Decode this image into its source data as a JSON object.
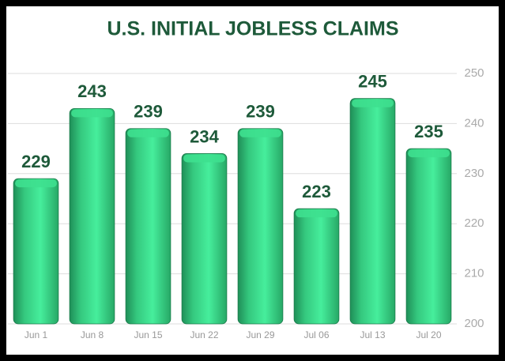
{
  "chart_data": {
    "type": "bar",
    "title": "U.S. INITIAL JOBLESS CLAIMS",
    "categories": [
      "Jun 1",
      "Jun 8",
      "Jun 15",
      "Jun 22",
      "Jun 29",
      "Jul 06",
      "Jul 13",
      "Jul 20"
    ],
    "values": [
      229,
      243,
      239,
      234,
      239,
      223,
      245,
      235
    ],
    "color": "#3ee08f",
    "ylim": [
      200,
      250
    ],
    "yticks": [
      200,
      210,
      220,
      230,
      240,
      250
    ],
    "grid": true
  }
}
